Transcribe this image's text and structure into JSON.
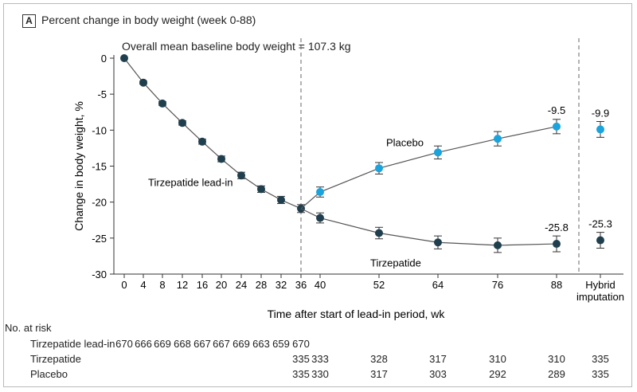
{
  "panel": {
    "letter": "A",
    "title": "Percent change in body weight (week 0-88)"
  },
  "baseline_note": "Overall mean baseline body weight = 107.3 kg",
  "chart_data": {
    "type": "line",
    "xlabel": "Time after start of lead-in period, wk",
    "ylabel": "Change in body weight, %",
    "ylim": [
      -30,
      0
    ],
    "yticks": [
      0,
      -5,
      -10,
      -15,
      -20,
      -25,
      -30
    ],
    "xticks": [
      "0",
      "4",
      "8",
      "12",
      "16",
      "20",
      "24",
      "28",
      "32",
      "36",
      "40",
      "52",
      "64",
      "76",
      "88"
    ],
    "extra_tick": [
      "Hybrid",
      "imputation"
    ],
    "phase_dividers": [
      "36",
      "Hybrid imputation"
    ],
    "series": [
      {
        "name": "Tirzepatide lead-in",
        "color": "#1f3f4e",
        "points": [
          {
            "x": "0",
            "y": 0
          },
          {
            "x": "4",
            "y": -3.4
          },
          {
            "x": "8",
            "y": -6.3
          },
          {
            "x": "12",
            "y": -9.0
          },
          {
            "x": "16",
            "y": -11.6
          },
          {
            "x": "20",
            "y": -14.0
          },
          {
            "x": "24",
            "y": -16.3
          },
          {
            "x": "28",
            "y": -18.2
          },
          {
            "x": "32",
            "y": -19.7
          },
          {
            "x": "36",
            "y": -20.9
          }
        ],
        "error": [
          0,
          0.2,
          0.25,
          0.3,
          0.35,
          0.4,
          0.45,
          0.45,
          0.5,
          0.55
        ]
      },
      {
        "name": "Tirzepatide",
        "color": "#1f3f4e",
        "points": [
          {
            "x": "36",
            "y": -20.9
          },
          {
            "x": "40",
            "y": -22.2
          },
          {
            "x": "52",
            "y": -24.3
          },
          {
            "x": "64",
            "y": -25.6
          },
          {
            "x": "76",
            "y": -26.0
          },
          {
            "x": "88",
            "y": -25.8
          }
        ],
        "error": [
          0.55,
          0.7,
          0.8,
          0.9,
          1.0,
          1.1
        ],
        "hybrid": {
          "y": -25.3,
          "error": 1.1
        }
      },
      {
        "name": "Placebo",
        "color": "#1aa3dc",
        "points": [
          {
            "x": "36",
            "y": -20.9
          },
          {
            "x": "40",
            "y": -18.6
          },
          {
            "x": "52",
            "y": -15.3
          },
          {
            "x": "64",
            "y": -13.1
          },
          {
            "x": "76",
            "y": -11.2
          },
          {
            "x": "88",
            "y": -9.5
          }
        ],
        "error": [
          0.55,
          0.7,
          0.8,
          0.9,
          1.0,
          1.0
        ],
        "hybrid": {
          "y": -9.9,
          "error": 1.1
        }
      }
    ],
    "annotations": [
      {
        "text": "-9.5",
        "x": "88",
        "y": -9.5
      },
      {
        "text": "-25.8",
        "x": "88",
        "y": -25.8
      },
      {
        "text": "-9.9",
        "x": "Hybrid imputation",
        "y": -9.9
      },
      {
        "text": "-25.3",
        "x": "Hybrid imputation",
        "y": -25.3
      }
    ],
    "series_labels": [
      {
        "text": "Placebo",
        "x": "40",
        "y": -11.7
      },
      {
        "text": "Tirzepatide lead-in",
        "x": "16",
        "y": -17.2
      },
      {
        "text": "Tirzepatide",
        "x": "52",
        "y": -28.4
      }
    ]
  },
  "at_risk": {
    "heading": "No. at risk",
    "rows": [
      {
        "label": "Tirzepatide lead-in",
        "cols": [
          "0",
          "4",
          "8",
          "12",
          "16",
          "20",
          "24",
          "28",
          "32",
          "36"
        ],
        "values": [
          "670",
          "666",
          "669",
          "668",
          "667",
          "667",
          "669",
          "663",
          "659",
          "670"
        ]
      },
      {
        "label": "Tirzepatide",
        "cols": [
          "36",
          "40",
          "52",
          "64",
          "76",
          "88",
          "Hybrid imputation"
        ],
        "values": [
          "335",
          "333",
          "328",
          "317",
          "310",
          "310",
          "335"
        ]
      },
      {
        "label": "Placebo",
        "cols": [
          "36",
          "40",
          "52",
          "64",
          "76",
          "88",
          "Hybrid imputation"
        ],
        "values": [
          "335",
          "330",
          "317",
          "303",
          "292",
          "289",
          "335"
        ]
      }
    ]
  }
}
